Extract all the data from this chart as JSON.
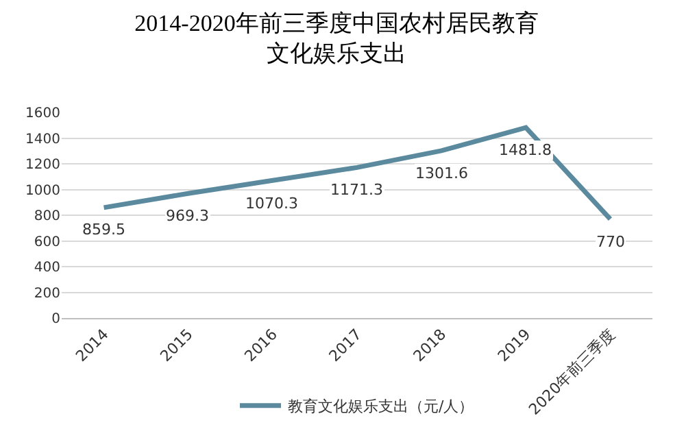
{
  "chart_data": {
    "type": "line",
    "title": "2014-2020年前三季度中国农村居民教育文化娱乐支出",
    "categories": [
      "2014",
      "2015",
      "2016",
      "2017",
      "2018",
      "2019",
      "2020年前三季度"
    ],
    "series": [
      {
        "name": "教育文化娱乐支出（元/人）",
        "color": "#5b8a9e",
        "values": [
          859.5,
          969.3,
          1070.3,
          1171.3,
          1301.6,
          1481.8,
          770
        ]
      }
    ],
    "ylim": [
      0,
      1600
    ],
    "yticks": [
      0,
      200,
      400,
      600,
      800,
      1000,
      1200,
      1400,
      1600
    ],
    "grid": "y",
    "legend": "bottom",
    "data_labels": true,
    "marker": "none",
    "line_style": "solid"
  }
}
